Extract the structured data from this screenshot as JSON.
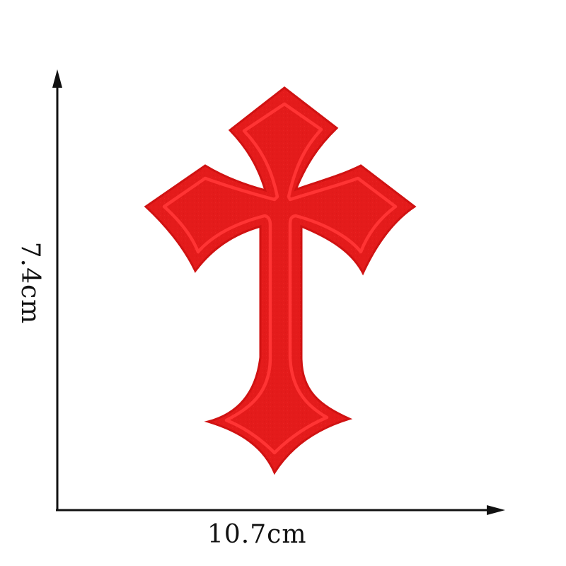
{
  "dimensions": {
    "width_label": "10.7cm",
    "height_label": "7.4cm"
  },
  "patch": {
    "shape": "gothic-cross",
    "fill_color": "#e41b1b",
    "stitch_color": "#ff3434",
    "edge_color": "#d01212"
  },
  "axis_color": "#111111"
}
